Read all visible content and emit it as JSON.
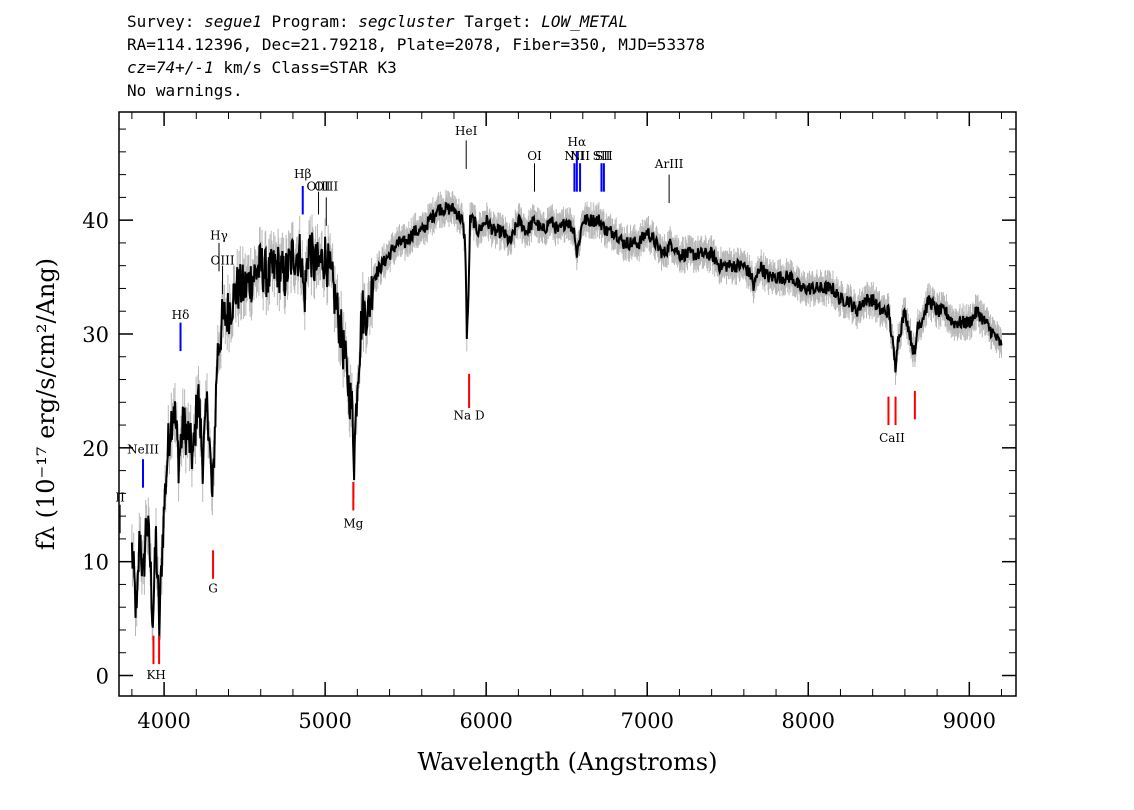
{
  "header": {
    "line1": {
      "survey_label": "Survey:",
      "survey": "segue1",
      "program_label": "Program:",
      "program": "segcluster",
      "target_label": "Target:",
      "target": "LOW_METAL"
    },
    "line2": "RA=114.12396, Dec=21.79218, Plate=2078, Fiber=350, MJD=53378",
    "line3": {
      "cz": "cz=74+/-1",
      "rest": " km/s Class=STAR K3"
    },
    "line4": "No warnings."
  },
  "chart_data": {
    "type": "line",
    "xlabel": "Wavelength (Angstroms)",
    "ylabel": "fλ (10⁻¹⁷ erg/s/cm²/Ang)",
    "xlim": [
      3720,
      9290
    ],
    "ylim": [
      -1.8,
      49.5
    ],
    "x_ticks": [
      4000,
      5000,
      6000,
      7000,
      8000,
      9000
    ],
    "y_ticks": [
      0,
      10,
      20,
      30,
      40
    ],
    "x_tick_labels": [
      "4000",
      "5000",
      "6000",
      "7000",
      "8000",
      "9000"
    ],
    "y_tick_labels": [
      "0",
      "10",
      "20",
      "30",
      "40"
    ],
    "series": [
      {
        "color": "#000000",
        "error_color": "#b8b8b8",
        "x": [
          3800,
          3830,
          3850,
          3870,
          3890,
          3910,
          3930,
          3950,
          3970,
          3990,
          4010,
          4030,
          4060,
          4090,
          4120,
          4150,
          4180,
          4210,
          4240,
          4270,
          4300,
          4330,
          4360,
          4400,
          4450,
          4500,
          4550,
          4600,
          4650,
          4700,
          4750,
          4800,
          4850,
          4870,
          4900,
          4930,
          4960,
          5000,
          5050,
          5100,
          5150,
          5170,
          5180,
          5200,
          5230,
          5270,
          5300,
          5350,
          5400,
          5450,
          5500,
          5550,
          5600,
          5650,
          5700,
          5750,
          5800,
          5850,
          5870,
          5880,
          5890,
          5900,
          5920,
          5950,
          6000,
          6050,
          6100,
          6150,
          6200,
          6250,
          6300,
          6350,
          6400,
          6450,
          6500,
          6550,
          6563,
          6600,
          6650,
          6700,
          6750,
          6800,
          6850,
          6900,
          6950,
          7000,
          7050,
          7100,
          7150,
          7200,
          7250,
          7300,
          7350,
          7400,
          7450,
          7500,
          7550,
          7600,
          7650,
          7660,
          7700,
          7750,
          7800,
          7850,
          7900,
          7950,
          8000,
          8050,
          8100,
          8150,
          8200,
          8250,
          8300,
          8350,
          8400,
          8450,
          8500,
          8542,
          8550,
          8600,
          8662,
          8680,
          8700,
          8750,
          8800,
          8850,
          8900,
          8950,
          9000,
          9050,
          9100,
          9150,
          9200
        ],
        "y": [
          11,
          5,
          13,
          8,
          14,
          11,
          5,
          12,
          4,
          12,
          17,
          21,
          24,
          19,
          22,
          21,
          19,
          25,
          19,
          24,
          15,
          28,
          31,
          32,
          34,
          34,
          35,
          36,
          35,
          36,
          35,
          37,
          37,
          33,
          38,
          36,
          36,
          37,
          34,
          30,
          25,
          23,
          19,
          26,
          32,
          32,
          35,
          36,
          37,
          38,
          38,
          39,
          39,
          40,
          41,
          41,
          41,
          40,
          38,
          30,
          33,
          40,
          40,
          39,
          40,
          39,
          39,
          38,
          40,
          39,
          40,
          39,
          40,
          39,
          40,
          39,
          37,
          40,
          40,
          40,
          39,
          39,
          38,
          38,
          38,
          39,
          38,
          37,
          38,
          37,
          37,
          37,
          37,
          37,
          36,
          36,
          36,
          36,
          35,
          34,
          36,
          35,
          35,
          35,
          35,
          34,
          34,
          34,
          34,
          34,
          33,
          33,
          32,
          33,
          33,
          32,
          32,
          27,
          29,
          32,
          28,
          31,
          31,
          33,
          32,
          32,
          31,
          31,
          31,
          32,
          31,
          30,
          29
        ]
      }
    ],
    "emission_lines": [
      {
        "label": "NeIII",
        "wavelength": 3869,
        "label_y": 19.5,
        "y0": 16.5,
        "y1": 19.0,
        "color": "#0000ff"
      },
      {
        "label": "Hδ",
        "wavelength": 4102,
        "label_y": 31.3,
        "y0": 28.5,
        "y1": 31.0,
        "color": "#0000ff"
      },
      {
        "label": "Hγ",
        "wavelength": 4341,
        "label_y": 38.3,
        "y0": 35.5,
        "y1": 38.0,
        "color": "#000000"
      },
      {
        "label": "OIII",
        "wavelength": 4363,
        "label_y": 36.1,
        "y0": 33.5,
        "y1": 36.0,
        "color": "#000000"
      },
      {
        "label": "Hβ",
        "wavelength": 4861,
        "label_y": 43.7,
        "y0": 40.5,
        "y1": 43.0,
        "color": "#0000ff"
      },
      {
        "label": "OIII",
        "wavelength": 4959,
        "label_y": 42.6,
        "y0": 40.5,
        "y1": 42.5,
        "color": "#000000"
      },
      {
        "label": "OIII",
        "wavelength": 5007,
        "label_y": 42.6,
        "y0": 39.5,
        "y1": 42.0,
        "color": "#000000"
      },
      {
        "label": "HeI",
        "wavelength": 5876,
        "label_y": 47.5,
        "y0": 44.5,
        "y1": 47.0,
        "color": "#000000"
      },
      {
        "label": "OI",
        "wavelength": 6300,
        "label_y": 45.3,
        "y0": 42.5,
        "y1": 45.0,
        "color": "#000000"
      },
      {
        "label": "NII",
        "wavelength": 6548,
        "label_y": 45.3,
        "y0": 42.5,
        "y1": 45.0,
        "color": "#0000ff"
      },
      {
        "label": "Hα",
        "wavelength": 6563,
        "label_y": 46.5,
        "y0": 42.5,
        "y1": 46.0,
        "color": "#0000ff"
      },
      {
        "label": "NII",
        "wavelength": 6583,
        "label_y": 45.3,
        "y0": 42.5,
        "y1": 45.0,
        "color": "#0000ff"
      },
      {
        "label": "SII",
        "wavelength": 6716,
        "label_y": 45.3,
        "y0": 42.5,
        "y1": 45.0,
        "color": "#0000ff"
      },
      {
        "label": "SII",
        "wavelength": 6731,
        "label_y": 45.3,
        "y0": 42.5,
        "y1": 45.0,
        "color": "#0000ff"
      },
      {
        "label": "ArIII",
        "wavelength": 7136,
        "label_y": 44.6,
        "y0": 41.5,
        "y1": 44.0,
        "color": "#000000"
      },
      {
        "label": "II",
        "wavelength": 3727,
        "label_y": 15.3,
        "y0": 12.5,
        "y1": 15.0,
        "color": "#000000"
      }
    ],
    "absorption_lines": [
      {
        "label": "KH",
        "wavelengths": [
          3934,
          3969
        ],
        "label_x": 3951,
        "label_y": -0.3,
        "y0": 1.0,
        "y1": 3.5,
        "color": "#ff0000"
      },
      {
        "label": "G",
        "wavelengths": [
          4304
        ],
        "label_x": 4304,
        "label_y": 7.3,
        "y0": 8.5,
        "y1": 11.0,
        "color": "#ff0000"
      },
      {
        "label": "Mg",
        "wavelengths": [
          5175
        ],
        "label_x": 5175,
        "label_y": 13.0,
        "y0": 14.5,
        "y1": 17.0,
        "color": "#ff0000"
      },
      {
        "label": "Na D",
        "wavelengths": [
          5894
        ],
        "label_x": 5894,
        "label_y": 22.5,
        "y0": 23.5,
        "y1": 26.5,
        "color": "#ff0000"
      },
      {
        "label": "CaII",
        "wavelengths": [
          8498,
          8542
        ],
        "label_x": 8520,
        "label_y": 20.5,
        "y0": 22.0,
        "y1": 24.5,
        "color": "#ff0000"
      },
      {
        "label": "",
        "wavelengths": [
          8662
        ],
        "label_x": 8662,
        "label_y": 20.5,
        "y0": 22.5,
        "y1": 25.0,
        "color": "#ff0000"
      }
    ]
  }
}
